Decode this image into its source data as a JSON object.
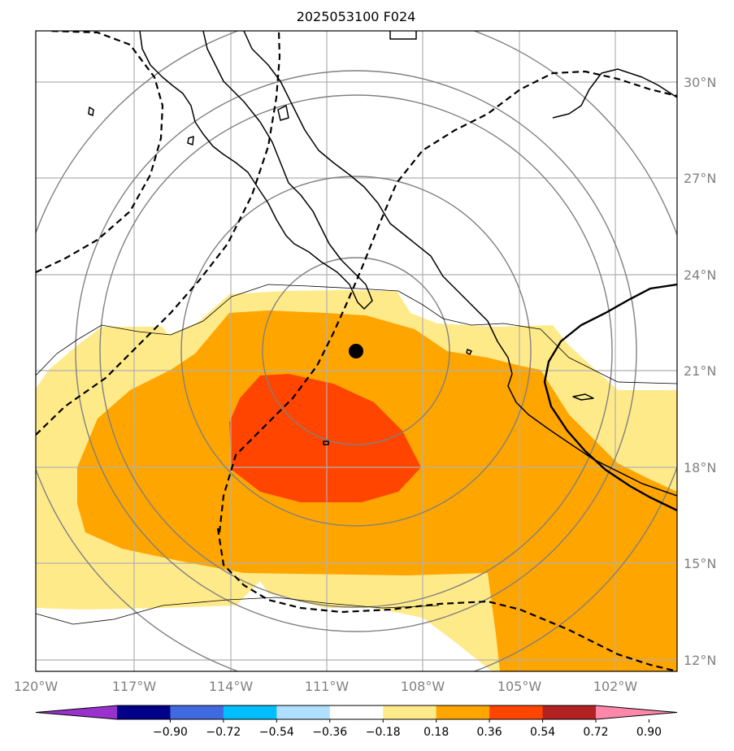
{
  "title": "2025053100 F024",
  "map": {
    "lon_range": [
      -120.0,
      -100.5
    ],
    "lat_range": [
      11.6,
      31.6
    ],
    "longitude_labels": [
      "120°W",
      "117°W",
      "114°W",
      "111°W",
      "108°W",
      "105°W",
      "102°W"
    ],
    "latitude_labels": [
      "30°N",
      "27°N",
      "24°N",
      "21°N",
      "18°N",
      "15°N",
      "12°N"
    ],
    "storm_center": {
      "lon": -110.1,
      "lat": 21.6
    },
    "range_rings_center": {
      "lon": -110.1,
      "lat": 21.6
    },
    "range_ring_count": 5,
    "colors": {
      "coast": "#000000",
      "grid": "#b0b0b0",
      "ring": "#808080",
      "contour": "#000000"
    }
  },
  "colorbar": {
    "labels": [
      "−0.90",
      "−0.72",
      "−0.54",
      "−0.36",
      "−0.18",
      "0.18",
      "0.36",
      "0.54",
      "0.72",
      "0.90"
    ],
    "colors": [
      "#9932cc",
      "#00008b",
      "#4169e1",
      "#00bfff",
      "#b0e0ff",
      "#ffffff",
      "#ffea8a",
      "#ffa500",
      "#ff4500",
      "#b22222",
      "#ff88aa"
    ],
    "extend": "both"
  },
  "chart_data": {
    "type": "heatmap",
    "title": "2025053100 F024",
    "levels": [
      -0.9,
      -0.72,
      -0.54,
      -0.36,
      -0.18,
      0.18,
      0.36,
      0.54,
      0.72,
      0.9
    ],
    "filled_regions_visible": [
      {
        "range": [
          0.18,
          0.36
        ],
        "color": "#ffea8a"
      },
      {
        "range": [
          0.36,
          0.54
        ],
        "color": "#ffa500"
      },
      {
        "range": [
          0.54,
          0.72
        ],
        "color": "#ff4500"
      }
    ],
    "xlim": [
      -120.0,
      -100.5
    ],
    "ylim": [
      11.6,
      31.6
    ],
    "grid": true
  }
}
